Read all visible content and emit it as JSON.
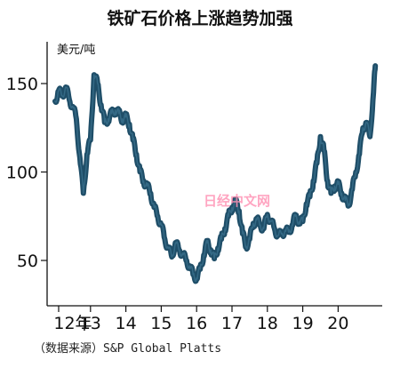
{
  "chart_data": {
    "type": "line",
    "title": "铁矿石价格上涨趋势加强",
    "ylabel": "美元/吨",
    "xlabel": "",
    "source": "（数据来源）S&P Global Platts",
    "ylim": [
      30,
      165
    ],
    "xlim": [
      2012.0,
      2021.2
    ],
    "y_ticks": [
      50,
      100,
      150
    ],
    "x_ticks": [
      {
        "value": 2012.1,
        "label": "12年"
      },
      {
        "value": 2013.0,
        "label": "13"
      },
      {
        "value": 2014.0,
        "label": "14"
      },
      {
        "value": 2015.0,
        "label": "15"
      },
      {
        "value": 2016.0,
        "label": "16"
      },
      {
        "value": 2017.0,
        "label": "17"
      },
      {
        "value": 2018.0,
        "label": "18"
      },
      {
        "value": 2019.0,
        "label": "19"
      },
      {
        "value": 2020.0,
        "label": "20"
      }
    ],
    "grid": false,
    "line_color": "#1f4e68",
    "series": [
      {
        "x": [
          2012.0,
          2012.1,
          2012.2,
          2012.3,
          2012.4,
          2012.5,
          2012.6,
          2012.7,
          2012.8,
          2012.9,
          2013.0,
          2013.1,
          2013.2,
          2013.3,
          2013.4,
          2013.5,
          2013.6,
          2013.7,
          2013.8,
          2013.9,
          2014.0,
          2014.1,
          2014.2,
          2014.3,
          2014.4,
          2014.5,
          2014.6,
          2014.7,
          2014.8,
          2014.9,
          2015.0,
          2015.1,
          2015.2,
          2015.3,
          2015.4,
          2015.5,
          2015.6,
          2015.7,
          2015.8,
          2015.9,
          2016.0,
          2016.1,
          2016.2,
          2016.3,
          2016.4,
          2016.5,
          2016.6,
          2016.7,
          2016.8,
          2016.9,
          2017.0,
          2017.1,
          2017.2,
          2017.3,
          2017.4,
          2017.5,
          2017.6,
          2017.7,
          2017.8,
          2017.9,
          2018.0,
          2018.1,
          2018.2,
          2018.3,
          2018.4,
          2018.5,
          2018.6,
          2018.7,
          2018.8,
          2018.9,
          2019.0,
          2019.1,
          2019.2,
          2019.3,
          2019.4,
          2019.5,
          2019.6,
          2019.7,
          2019.8,
          2019.9,
          2020.0,
          2020.1,
          2020.2,
          2020.3,
          2020.4,
          2020.5,
          2020.6,
          2020.7,
          2020.8,
          2020.9,
          2021.0,
          2021.05
        ],
        "values": [
          140,
          146,
          143,
          148,
          141,
          137,
          130,
          108,
          88,
          110,
          118,
          155,
          150,
          138,
          128,
          130,
          133,
          135,
          133,
          130,
          131,
          127,
          118,
          110,
          100,
          95,
          92,
          88,
          80,
          75,
          70,
          62,
          57,
          52,
          60,
          56,
          54,
          50,
          47,
          42,
          40,
          45,
          53,
          60,
          56,
          51,
          57,
          62,
          68,
          75,
          80,
          83,
          78,
          65,
          58,
          62,
          71,
          73,
          70,
          68,
          76,
          72,
          68,
          64,
          65,
          67,
          66,
          70,
          75,
          72,
          72,
          82,
          86,
          95,
          105,
          120,
          112,
          95,
          88,
          92,
          93,
          88,
          84,
          82,
          90,
          100,
          110,
          125,
          128,
          120,
          145,
          160
        ]
      }
    ]
  },
  "watermark": "日经中文网"
}
